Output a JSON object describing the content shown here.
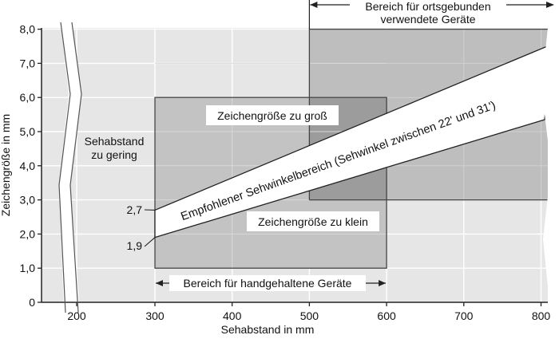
{
  "x_axis": {
    "label": "Sehabstand in mm",
    "ticks": [
      {
        "value": 200,
        "label": "200"
      },
      {
        "value": 300,
        "label": "300"
      },
      {
        "value": 400,
        "label": "400"
      },
      {
        "value": 500,
        "label": "500"
      },
      {
        "value": 600,
        "label": "600"
      },
      {
        "value": 700,
        "label": "700"
      },
      {
        "value": 800,
        "label": "800"
      }
    ]
  },
  "y_axis": {
    "label": "Zeichengröße in mm",
    "ticks": [
      {
        "value": 0,
        "label": "0"
      },
      {
        "value": 1,
        "label": "1,0"
      },
      {
        "value": 2,
        "label": "2,0"
      },
      {
        "value": 3,
        "label": "3,0"
      },
      {
        "value": 4,
        "label": "4,0"
      },
      {
        "value": 5,
        "label": "5,0"
      },
      {
        "value": 6,
        "label": "6,0"
      },
      {
        "value": 7,
        "label": "7,0"
      },
      {
        "value": 8,
        "label": "8,0"
      }
    ]
  },
  "regions": {
    "handheld": {
      "label": "Bereich für handgehaltene Geräte",
      "x": [
        300,
        600
      ],
      "y": [
        1.0,
        6.0
      ]
    },
    "stationary": {
      "label_line1": "Bereich für ortsgebunden",
      "label_line2": "verwendete Geräte",
      "x": [
        500,
        820
      ],
      "y": [
        3.0,
        8.0
      ]
    },
    "too_close": {
      "label_line1": "Sehabstand",
      "label_line2": "zu gering"
    },
    "too_large": {
      "label": "Zeichengröße zu groß"
    },
    "too_small": {
      "label": "Zeichengröße zu klein"
    }
  },
  "band": {
    "label": "Empfohlener Sehwinkelbereich (Sehwinkel zwischen 22' und 31')",
    "start_x": 300,
    "upper_start": 2.7,
    "lower_start": 1.9,
    "upper_label": "2,7",
    "lower_label": "1,9"
  },
  "colors": {
    "plot_bg": "#e6e6e6",
    "handheld_fill": "#c3c3c3",
    "stationary_fill": "#bebebe",
    "overlap_fill": "#9c9c9c",
    "grid": "#ffffff",
    "band_fill": "#ffffff"
  }
}
